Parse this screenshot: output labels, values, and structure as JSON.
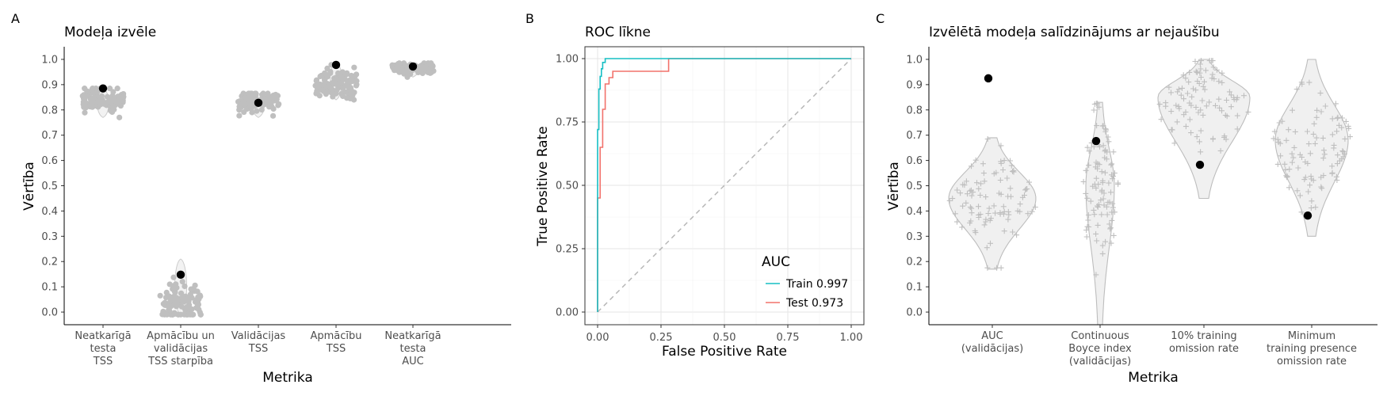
{
  "chart_data": [
    {
      "panel_letter": "A",
      "type": "scatter",
      "title": "Modeļa izvēle",
      "xlabel": "Metrika",
      "ylabel": "Vērtība",
      "ylim": [
        -0.05,
        1.05
      ],
      "yticks": [
        "0.0",
        "0.1",
        "0.2",
        "0.3",
        "0.4",
        "0.5",
        "0.6",
        "0.7",
        "0.8",
        "0.9",
        "1.0"
      ],
      "categories": [
        [
          "Neatkarīgā",
          "testa",
          "TSS"
        ],
        [
          "Apmācību un",
          "validācijas",
          "TSS starpība"
        ],
        [
          "Validācijas",
          "TSS"
        ],
        [
          "Apmācību",
          "TSS"
        ],
        [
          "Neatkarīgā",
          "testa",
          "AUC"
        ]
      ],
      "selected_values": [
        0.885,
        0.148,
        0.828,
        0.978,
        0.972
      ],
      "distributions": [
        {
          "min": 0.77,
          "max": 0.885,
          "center": 0.835
        },
        {
          "min": -0.01,
          "max": 0.21,
          "center": 0.04
        },
        {
          "min": 0.77,
          "max": 0.865,
          "center": 0.835
        },
        {
          "min": 0.84,
          "max": 0.99,
          "center": 0.9
        },
        {
          "min": 0.93,
          "max": 0.985,
          "center": 0.965
        }
      ],
      "point_color": "#bfbfbf",
      "selected_color": "#000000"
    },
    {
      "panel_letter": "B",
      "type": "line",
      "title": "ROC līkne",
      "xlabel": "False Positive Rate",
      "ylabel": "True Positive Rate",
      "xlim": [
        0,
        1
      ],
      "ylim": [
        0,
        1
      ],
      "xticks": [
        "0.00",
        "0.25",
        "0.50",
        "0.75",
        "1.00"
      ],
      "yticks": [
        "0.00",
        "0.25",
        "0.50",
        "0.75",
        "1.00"
      ],
      "grid": true,
      "legend_title": "AUC",
      "legend_position": "bottom-right",
      "series": [
        {
          "name": "Train 0.997",
          "color": "#17bfc4",
          "x": [
            0,
            0,
            0.005,
            0.005,
            0.01,
            0.01,
            0.015,
            0.015,
            0.02,
            0.02,
            0.03,
            0.03,
            1.0
          ],
          "y": [
            0,
            0.72,
            0.72,
            0.88,
            0.88,
            0.93,
            0.93,
            0.96,
            0.96,
            0.985,
            0.985,
            1.0,
            1.0
          ]
        },
        {
          "name": "Test 0.973",
          "color": "#f2726b",
          "x": [
            0,
            0,
            0.01,
            0.01,
            0.02,
            0.02,
            0.03,
            0.03,
            0.045,
            0.045,
            0.06,
            0.06,
            0.28,
            0.28,
            1.0
          ],
          "y": [
            0,
            0.45,
            0.45,
            0.65,
            0.65,
            0.8,
            0.8,
            0.9,
            0.9,
            0.925,
            0.925,
            0.95,
            0.95,
            1.0,
            1.0
          ]
        },
        {
          "name": "",
          "color": "#b3b3b3",
          "dashed": true,
          "x": [
            0,
            1
          ],
          "y": [
            0,
            1
          ]
        }
      ]
    },
    {
      "panel_letter": "C",
      "type": "scatter",
      "title": "Izvēlētā modeļa salīdzinājums ar nejaušību",
      "xlabel": "Metrika",
      "ylabel": "Vērtība",
      "ylim": [
        -0.05,
        1.05
      ],
      "yticks": [
        "0.0",
        "0.1",
        "0.2",
        "0.3",
        "0.4",
        "0.5",
        "0.6",
        "0.7",
        "0.8",
        "0.9",
        "1.0"
      ],
      "categories": [
        [
          "AUC",
          "(validācijas)"
        ],
        [
          "Continuous",
          "Boyce index",
          "(validācijas)"
        ],
        [
          "10% training",
          "omission rate"
        ],
        [
          "Minimum",
          "training presence",
          "omission rate"
        ]
      ],
      "observed_values": [
        0.925,
        0.677,
        0.583,
        0.382
      ],
      "null_distributions": [
        {
          "min": 0.17,
          "max": 0.69,
          "mode": 0.45
        },
        {
          "min": -0.05,
          "max": 0.83,
          "mode": 0.5
        },
        {
          "min": 0.45,
          "max": 1.0,
          "mode": 0.85
        },
        {
          "min": 0.3,
          "max": 1.0,
          "mode": 0.68
        }
      ],
      "violin_color": "#f0f0f0",
      "point_color": "#bfbfbf",
      "observed_color": "#000000"
    }
  ]
}
